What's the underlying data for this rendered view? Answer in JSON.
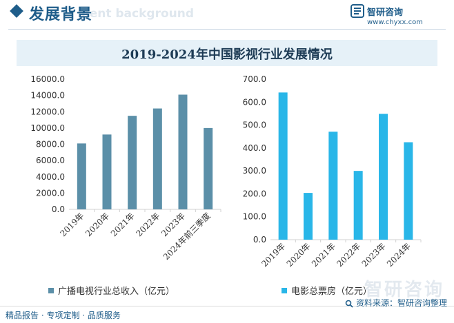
{
  "header": {
    "title": "发展背景",
    "title_shadow": "ment background",
    "brand_name": "智研咨询",
    "brand_url": "www.chyxx.com",
    "brand_icon": "zhiyan-logo-icon"
  },
  "chart_title": "2019-2024年中国影视行业发展情况",
  "colors": {
    "tv_bar": "#5b8fa8",
    "box_bar": "#29b6e8",
    "brand": "#1f5d8a"
  },
  "chart_data": [
    {
      "type": "bar",
      "categories": [
        "2019年",
        "2020年",
        "2021年",
        "2022年",
        "2023年",
        "2024年前三季度"
      ],
      "series": [
        {
          "name": "广播电视行业总收入（亿元）",
          "values": [
            8100,
            9200,
            11500,
            12400,
            14100,
            10000
          ]
        }
      ],
      "yticks": [
        "0.0",
        "2000.0",
        "4000.0",
        "6000.0",
        "8000.0",
        "10000.0",
        "12000.0",
        "14000.0",
        "16000.0"
      ],
      "ylim": [
        0,
        16000
      ],
      "legend": "bottom"
    },
    {
      "type": "bar",
      "categories": [
        "2019年",
        "2020年",
        "2021年",
        "2022年",
        "2023年",
        "2024年"
      ],
      "series": [
        {
          "name": "电影总票房（亿元）",
          "values": [
            642,
            204,
            471,
            300,
            549,
            425
          ]
        }
      ],
      "yticks": [
        "0.0",
        "100.0",
        "200.0",
        "300.0",
        "400.0",
        "500.0",
        "600.0",
        "700.0"
      ],
      "ylim": [
        0,
        700
      ],
      "legend": "bottom"
    }
  ],
  "footer": {
    "left": "精品报告 · 专项定制 · 品质服务",
    "source": "资料来源：智研咨询整理",
    "watermark": "智研咨询"
  }
}
